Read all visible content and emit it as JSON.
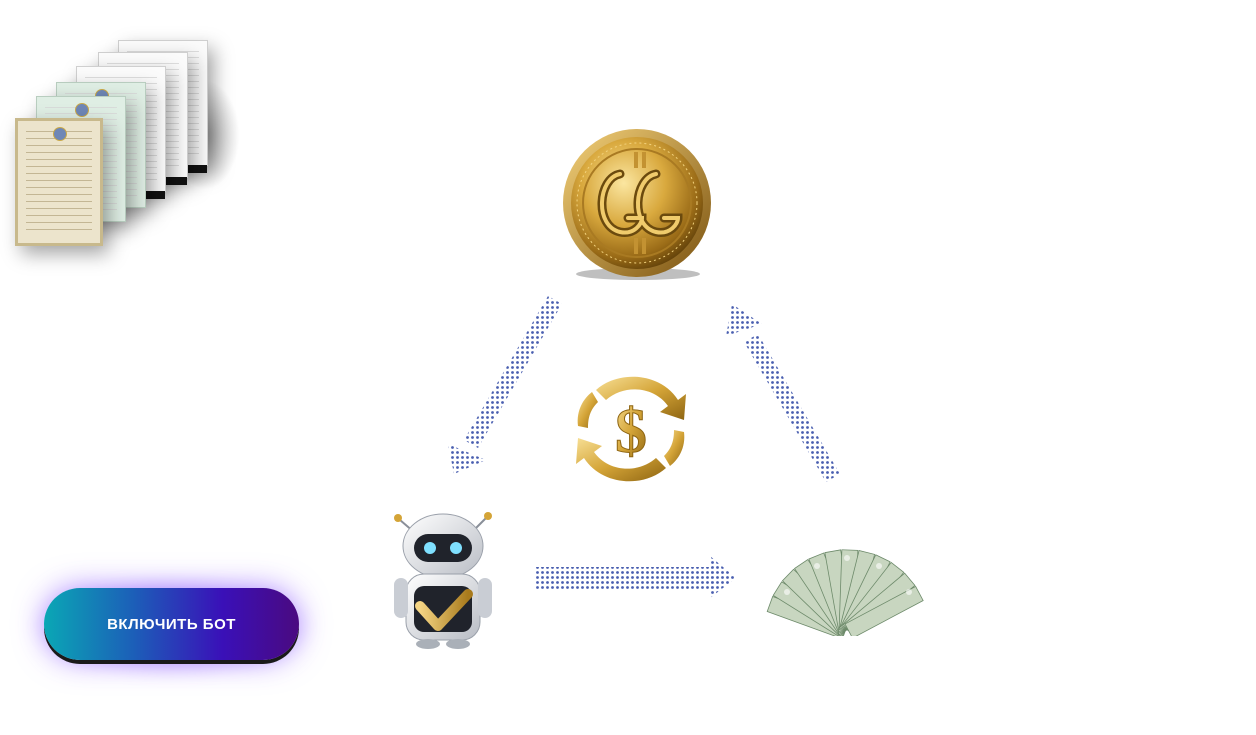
{
  "cta": {
    "label": "ВКЛЮЧИТЬ БОТ"
  },
  "colors": {
    "button_gradient_start": "#0aa7b5",
    "button_gradient_end": "#4a0a80",
    "arrow_dots": "#4a5fb0",
    "gold": "#d4a437"
  },
  "icons": {
    "coin": "gold-crypto-coin-icon",
    "exchange": "dollar-exchange-cycle-icon",
    "robot": "trading-robot-icon",
    "money": "dollar-bills-fan-icon",
    "documents": "certificates-stack-icon"
  }
}
